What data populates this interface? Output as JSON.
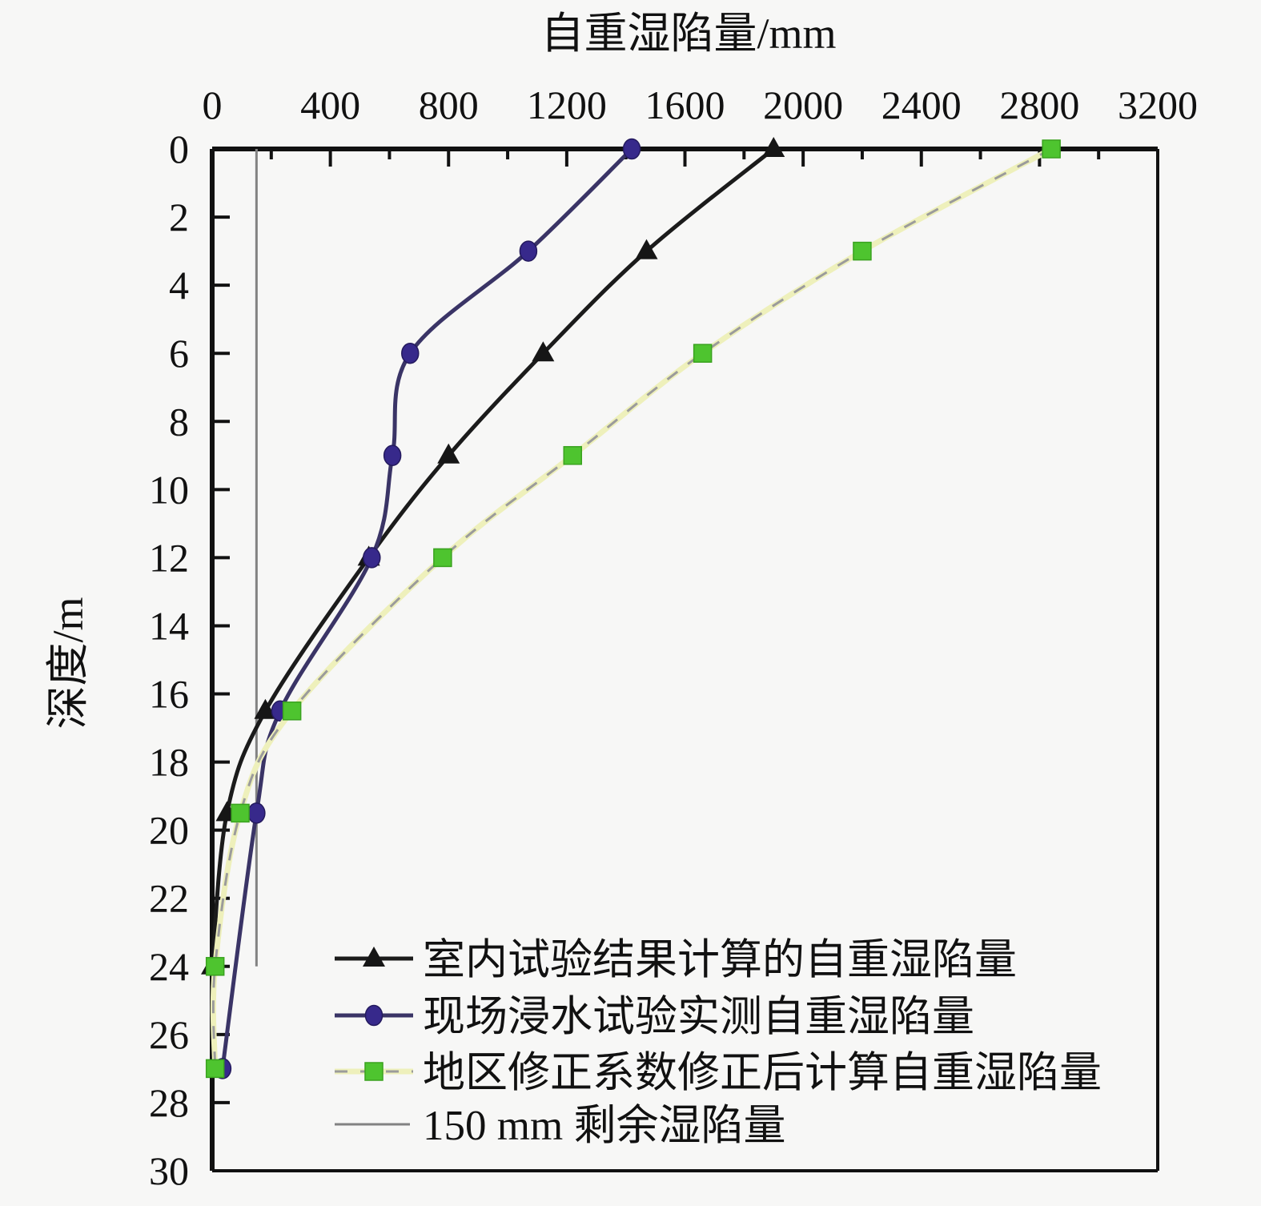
{
  "figure": {
    "background": "#f7f7f6",
    "x_axis": {
      "title": "自重湿陷量/mm",
      "min": 0,
      "max": 3200,
      "major_step": 400,
      "minor_step": 200,
      "tick_labels": [
        "0",
        "400",
        "800",
        "1200",
        "1600",
        "2000",
        "2400",
        "2800",
        "3200"
      ]
    },
    "y_axis": {
      "title": "深度/m",
      "min": 0,
      "max": 30,
      "major_step": 2,
      "tick_labels": [
        "0",
        "2",
        "4",
        "6",
        "8",
        "10",
        "12",
        "14",
        "16",
        "18",
        "20",
        "22",
        "24",
        "26",
        "28",
        "30"
      ]
    }
  },
  "chart_data": {
    "type": "line",
    "title": "自重湿陷量/mm",
    "xlabel": "自重湿陷量/mm",
    "ylabel": "深度/m",
    "xlim": [
      0,
      3200
    ],
    "ylim": [
      0,
      30
    ],
    "y_inverted": true,
    "grid": false,
    "legend_position": "inside bottom-left",
    "series": [
      {
        "name": "室内试验结果计算的自重湿陷量",
        "marker": "triangle",
        "marker_color": "#161616",
        "line_color": "#1b1b1b",
        "points_depth_m_vs_mm": [
          [
            0,
            1900
          ],
          [
            3,
            1470
          ],
          [
            6,
            1120
          ],
          [
            9,
            800
          ],
          [
            12,
            530
          ],
          [
            16.5,
            180
          ],
          [
            19.5,
            50
          ],
          [
            24,
            0
          ]
        ]
      },
      {
        "name": "现场浸水试验实测自重湿陷量",
        "marker": "circle",
        "marker_color": "#37298b",
        "line_color": "#3a3466",
        "points_depth_m_vs_mm": [
          [
            0,
            1420
          ],
          [
            3,
            1070
          ],
          [
            6,
            670
          ],
          [
            9,
            610
          ],
          [
            12,
            540
          ],
          [
            16.5,
            230
          ],
          [
            19.5,
            150
          ],
          [
            27,
            35
          ]
        ]
      },
      {
        "name": "地区修正系数修正后计算自重湿陷量",
        "marker": "square",
        "marker_color": "#4ec42f",
        "line_color": "#9b9b9b",
        "line_overlay_color": "#eef0bb",
        "points_depth_m_vs_mm": [
          [
            0,
            2840
          ],
          [
            3,
            2200
          ],
          [
            6,
            1660
          ],
          [
            9,
            1220
          ],
          [
            12,
            780
          ],
          [
            16.5,
            270
          ],
          [
            19.5,
            95
          ],
          [
            24,
            10
          ],
          [
            27,
            10
          ]
        ]
      }
    ],
    "reference_line": {
      "name": "150 mm 剩余湿陷量",
      "x_mm": 150,
      "depth_range_m": [
        0,
        24
      ],
      "color": "#828282"
    }
  },
  "legend": {
    "items": [
      {
        "label": "室内试验结果计算的自重湿陷量"
      },
      {
        "label": "现场浸水试验实测自重湿陷量"
      },
      {
        "label": "地区修正系数修正后计算自重湿陷量"
      },
      {
        "label": "150 mm 剩余湿陷量"
      }
    ]
  }
}
